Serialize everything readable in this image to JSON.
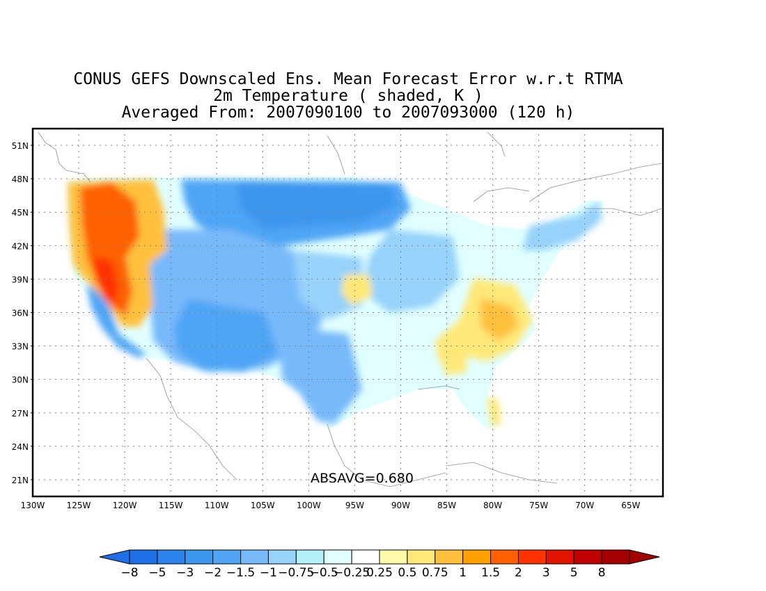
{
  "title": {
    "line1": "CONUS GEFS Downscaled Ens. Mean Forecast Error w.r.t RTMA",
    "line2": "2m Temperature ( shaded, K )",
    "line3": "Averaged From: 2007090100 to 2007093000 (120 h)"
  },
  "map": {
    "lat_labels": [
      "51N",
      "48N",
      "45N",
      "42N",
      "39N",
      "36N",
      "33N",
      "30N",
      "27N",
      "24N",
      "21N"
    ],
    "lon_labels": [
      "130W",
      "125W",
      "120W",
      "115W",
      "110W",
      "105W",
      "100W",
      "95W",
      "90W",
      "85W",
      "80W",
      "75W",
      "70W",
      "65W"
    ],
    "lat_range": [
      19.5,
      52.5
    ],
    "lon_range": [
      -130,
      -61.5
    ],
    "annotation": "ABSAVG=0.680",
    "grid": "dotted"
  },
  "colorbar": {
    "labels": [
      "−8",
      "−5",
      "−3",
      "−2",
      "−1.5",
      "−1",
      "−0.75",
      "−0.5",
      "−0.25",
      "0.25",
      "0.5",
      "0.75",
      "1",
      "1.5",
      "2",
      "3",
      "5",
      "8"
    ],
    "colors": [
      "#1e6ee6",
      "#2b82ea",
      "#3c96ee",
      "#50a5f5",
      "#78b9fa",
      "#96d2fa",
      "#b4f0fa",
      "#e1ffff",
      "#ffffff",
      "#fffaaa",
      "#ffe878",
      "#ffc03c",
      "#ffa000",
      "#ff6000",
      "#ff3200",
      "#e11400",
      "#c00000",
      "#a50000"
    ],
    "low_arrow_color": "#1e6ee6",
    "high_arrow_color": "#a50000"
  }
}
